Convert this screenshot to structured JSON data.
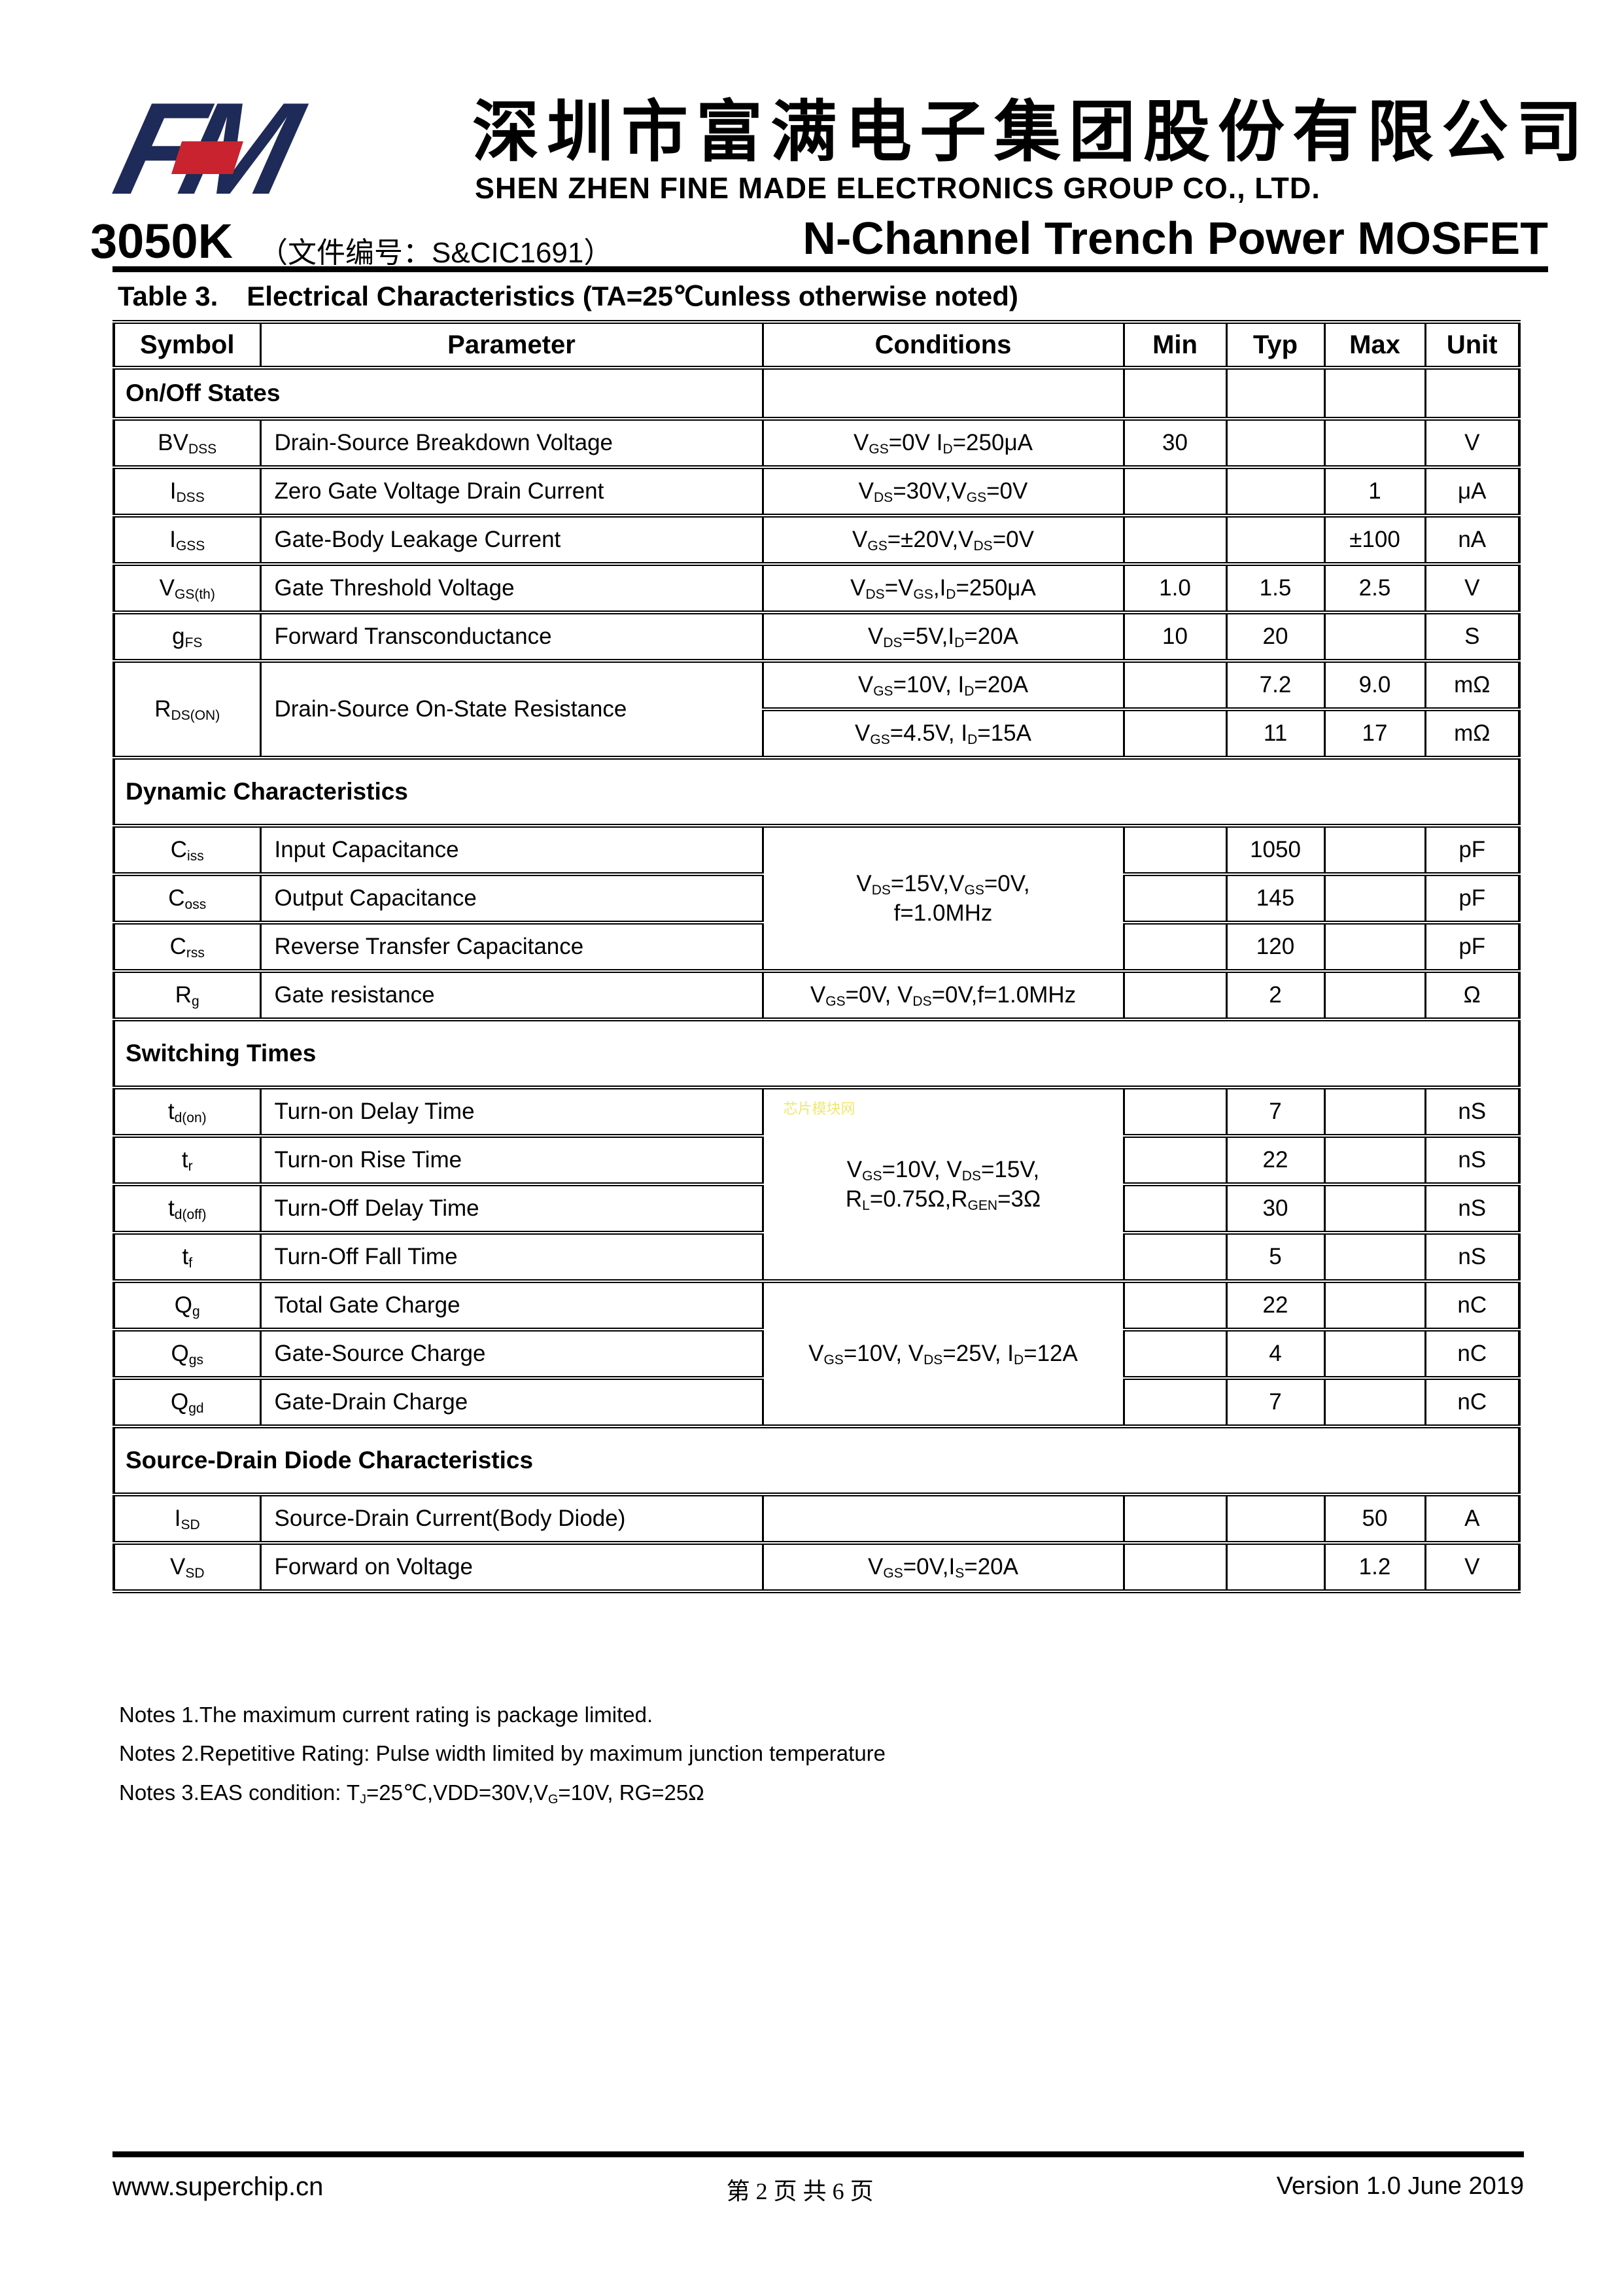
{
  "header": {
    "logo_text": "FM",
    "logo_navy": "#1e2a57",
    "logo_red": "#c8232e",
    "company_cn": "深圳市富满电子集团股份有限公司",
    "company_en": "SHEN ZHEN FINE MADE ELECTRONICS GROUP CO., LTD.",
    "part_number": "3050K",
    "doc_number": "（文件编号：S&CIC1691）",
    "subtitle": "N-Channel Trench Power MOSFET"
  },
  "table": {
    "title_prefix": "Table 3.",
    "title": "Electrical Characteristics (TA=25℃unless otherwise noted)",
    "columns": [
      "Symbol",
      "Parameter",
      "Conditions",
      "Min",
      "Typ",
      "Max",
      "Unit"
    ],
    "rows": [
      {
        "label": "On/Off States"
      },
      {
        "symbol": "BV~DSS~",
        "parameter": "Drain-Source Breakdown Voltage",
        "conditions": "V~GS~=0V I~D~=250μA",
        "min": "30",
        "unit": "V"
      },
      {
        "symbol": "I~DSS~",
        "parameter": "Zero Gate Voltage Drain Current",
        "conditions": "V~DS~=30V,V~GS~=0V",
        "max": "1",
        "unit": "μA"
      },
      {
        "symbol": "I~GSS~",
        "parameter": "Gate-Body Leakage Current",
        "conditions": "V~GS~=±20V,V~DS~=0V",
        "max": "±100",
        "unit": "nA"
      },
      {
        "symbol": "V~GS(th)~",
        "parameter": "Gate Threshold Voltage",
        "conditions": "V~DS~=V~GS~,I~D~=250μA",
        "min": "1.0",
        "typ": "1.5",
        "max": "2.5",
        "unit": "V"
      },
      {
        "symbol": "g~FS~",
        "parameter": "Forward Transconductance",
        "conditions": "V~DS~=5V,I~D~=20A",
        "min": "10",
        "typ": "20",
        "unit": "S"
      },
      {
        "symbol": "R~DS(ON)~",
        "parameter": "Drain-Source On-State Resistance",
        "conditions": "V~GS~=10V, I~D~=20A",
        "typ": "7.2",
        "max": "9.0",
        "unit": "mΩ"
      },
      {
        "conditions": "V~GS~=4.5V, I~D~=15A",
        "typ": "11",
        "max": "17",
        "unit": "mΩ"
      },
      {
        "label": "Dynamic Characteristics"
      },
      {
        "symbol": "C~iss~",
        "parameter": "Input Capacitance",
        "cond_line1": "V~DS~=15V,V~GS~=0V,",
        "cond_line2": "f=1.0MHz",
        "typ": "1050",
        "unit": "pF"
      },
      {
        "symbol": "C~oss~",
        "parameter": "Output Capacitance",
        "typ": "145",
        "unit": "pF"
      },
      {
        "symbol": "C~rss~",
        "parameter": "Reverse Transfer Capacitance",
        "typ": "120",
        "unit": "pF"
      },
      {
        "symbol": "R~g~",
        "parameter": "Gate resistance",
        "conditions": "V~GS~=0V, V~DS~=0V,f=1.0MHz",
        "typ": "2",
        "unit": "Ω"
      },
      {
        "label": "Switching Times"
      },
      {
        "symbol": "t~d(on)~",
        "parameter": "Turn-on Delay Time",
        "cond_line1": "V~GS~=10V, V~DS~=15V,",
        "cond_line2": "R~L~=0.75Ω,R~GEN~=3Ω",
        "typ": "7",
        "unit": "nS"
      },
      {
        "symbol": "t~r~",
        "parameter": "Turn-on Rise Time",
        "typ": "22",
        "unit": "nS"
      },
      {
        "symbol": "t~d(off)~",
        "parameter": "Turn-Off Delay Time",
        "typ": "30",
        "unit": "nS"
      },
      {
        "symbol": "t~f~",
        "parameter": "Turn-Off Fall Time",
        "typ": "5",
        "unit": "nS"
      },
      {
        "symbol": "Q~g~",
        "parameter": "Total Gate Charge",
        "conditions": "V~GS~=10V, V~DS~=25V, I~D~=12A",
        "typ": "22",
        "unit": "nC"
      },
      {
        "symbol": "Q~gs~",
        "parameter": "Gate-Source Charge",
        "typ": "4",
        "unit": "nC"
      },
      {
        "symbol": "Q~gd~",
        "parameter": "Gate-Drain Charge",
        "typ": "7",
        "unit": "nC"
      },
      {
        "label": "Source-Drain Diode Characteristics"
      },
      {
        "symbol": "I~SD~",
        "parameter": "Source-Drain Current(Body Diode)",
        "max": "50",
        "unit": "A"
      },
      {
        "symbol": "V~SD~",
        "parameter": "Forward on Voltage",
        "conditions": "V~GS~=0V,I~S~=20A",
        "max": "1.2",
        "unit": "V"
      }
    ]
  },
  "watermark": {
    "text": "芯片模块网",
    "color": "#efe96f"
  },
  "notes": [
    "Notes 1.The maximum current rating is package limited.",
    "Notes 2.Repetitive Rating: Pulse width limited by maximum junction temperature",
    "Notes 3.EAS condition: T~J~=25℃,VDD=30V,V~G~=10V, RG=25Ω"
  ],
  "footer": {
    "website": "www.superchip.cn",
    "page_indicator": "第 2 页 共 6 页",
    "version": "Version 1.0  June 2019"
  }
}
